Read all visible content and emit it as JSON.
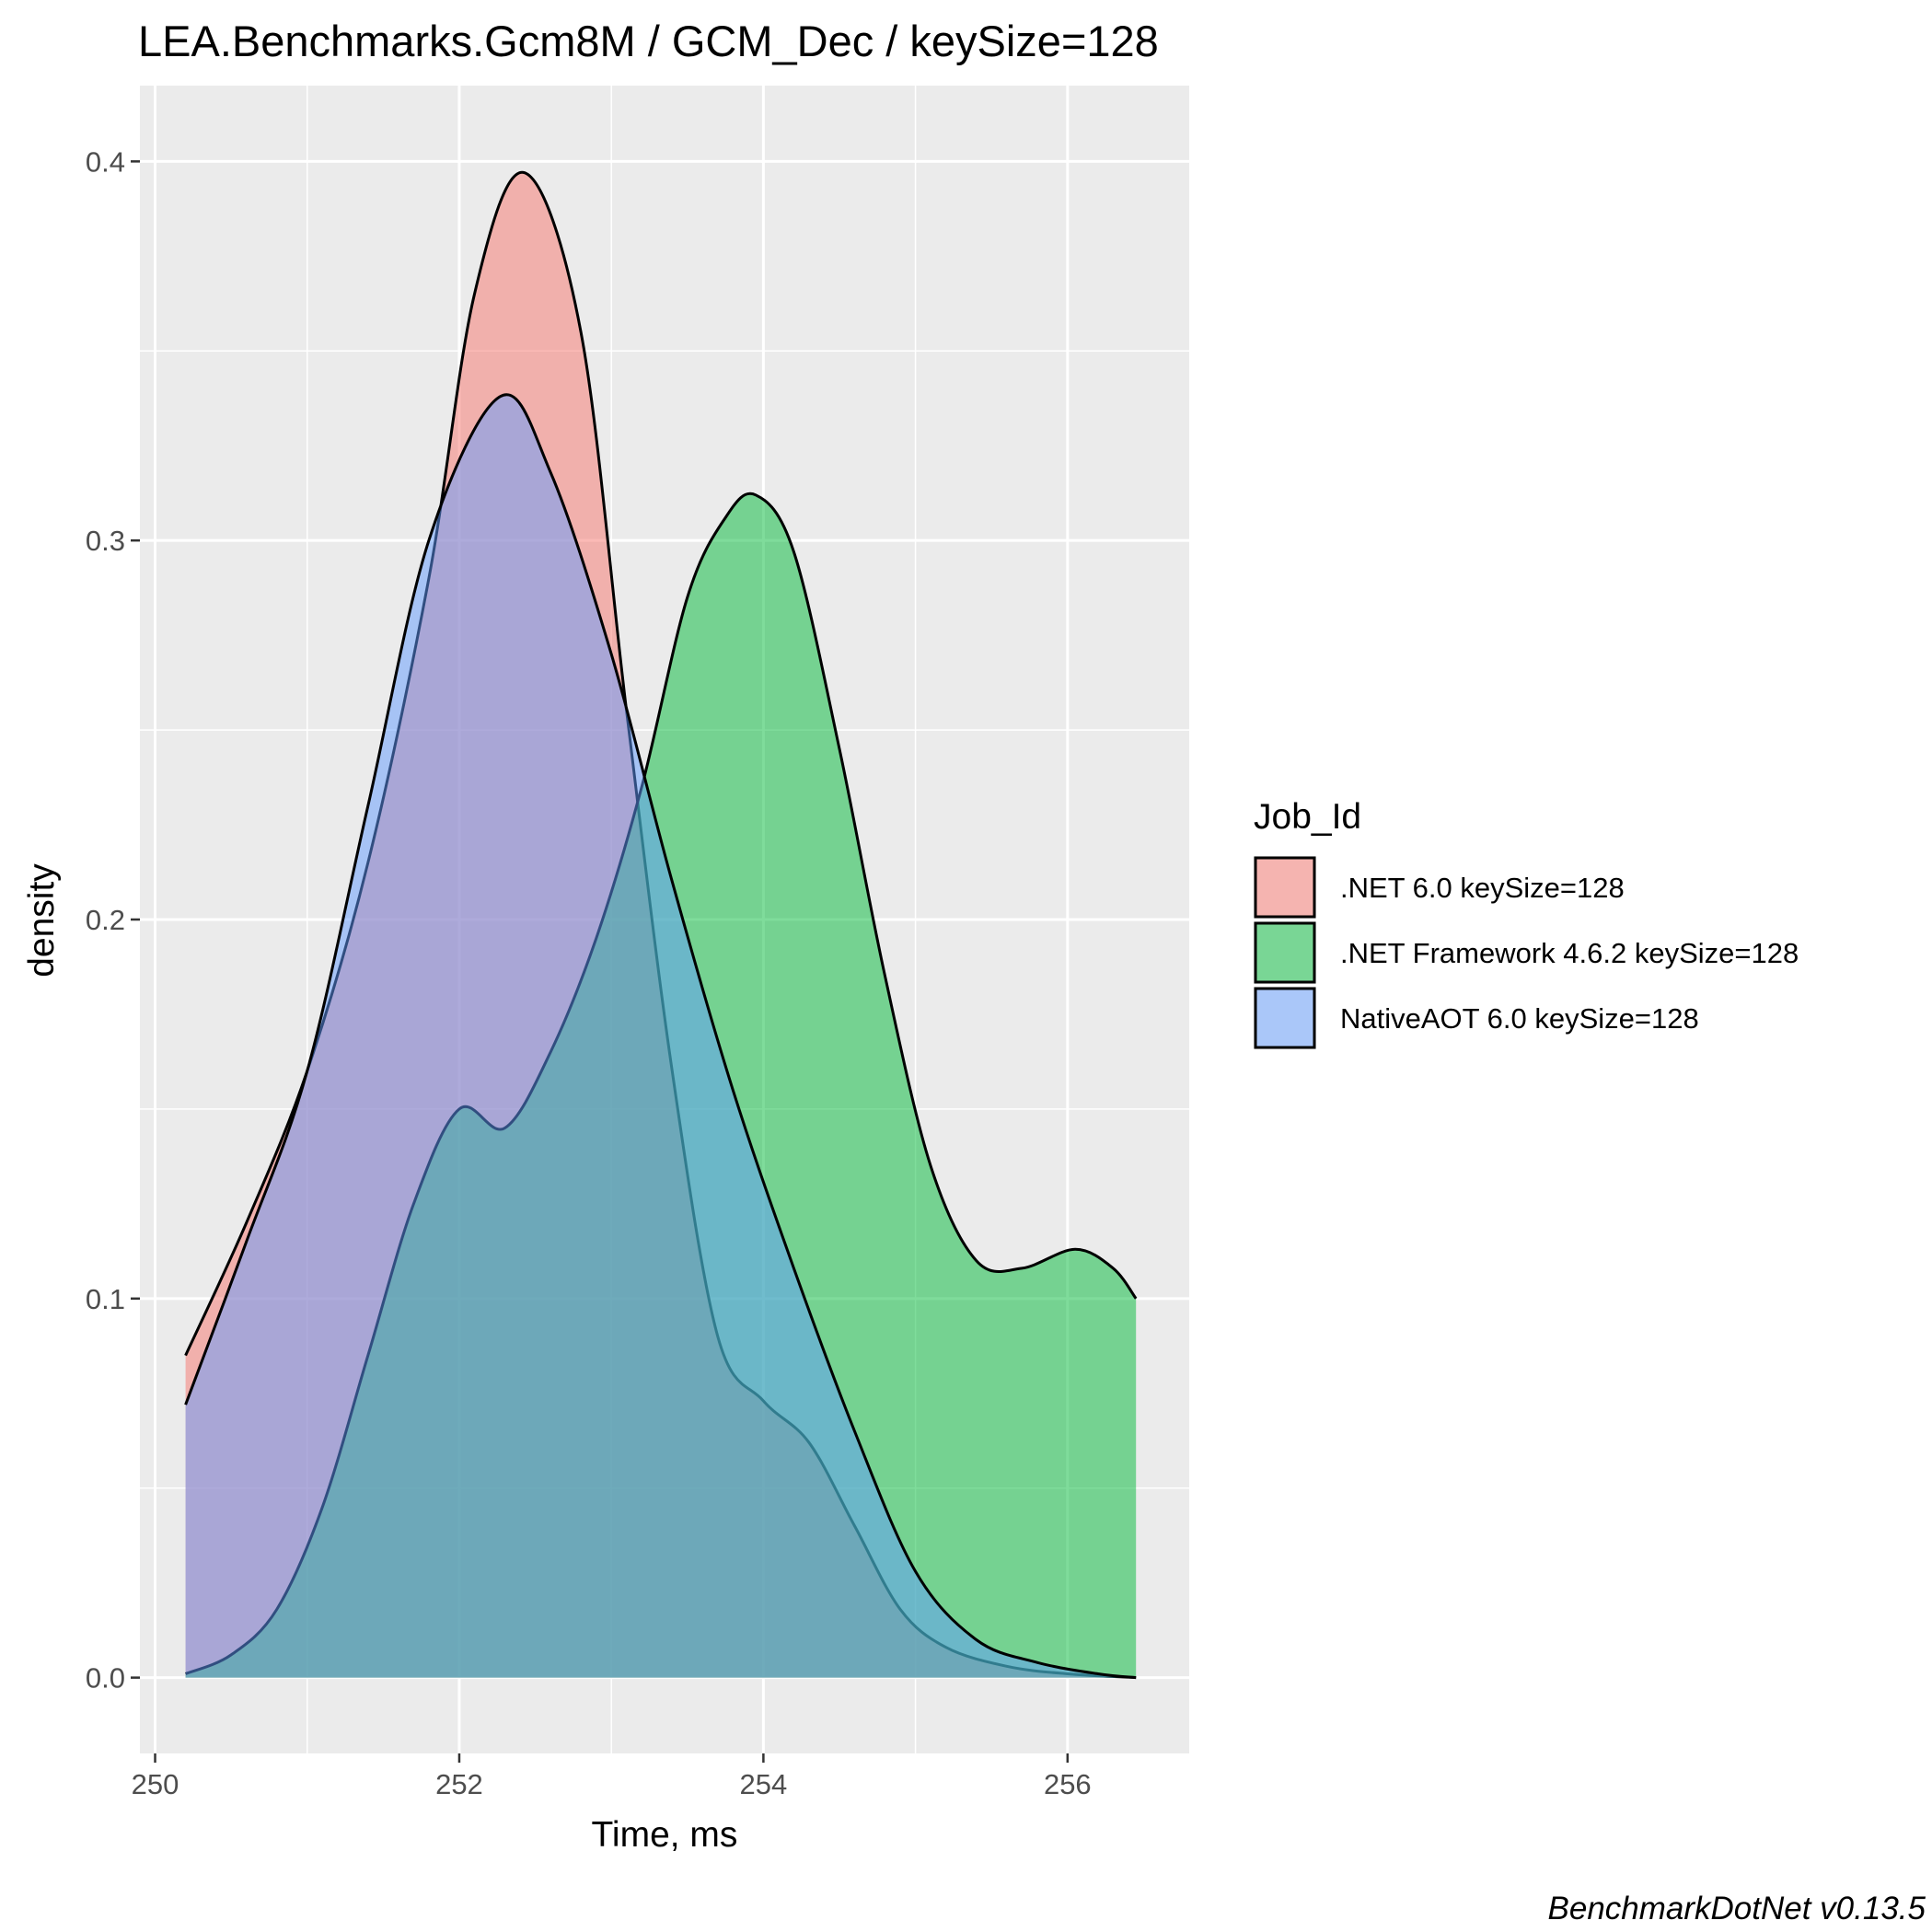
{
  "chart_data": {
    "type": "area",
    "subtype": "density",
    "title": "LEA.Benchmarks.Gcm8M / GCM_Dec / keySize=128",
    "xlabel": "Time, ms",
    "ylabel": "density",
    "xlim": [
      249.9,
      256.8
    ],
    "ylim": [
      -0.02,
      0.42
    ],
    "xticks": [
      250,
      252,
      254,
      256
    ],
    "xtick_labels": [
      "250",
      "252",
      "254",
      "256"
    ],
    "yticks": [
      0.0,
      0.1,
      0.2,
      0.3,
      0.4
    ],
    "ytick_labels": [
      "0.0",
      "0.1",
      "0.2",
      "0.3",
      "0.4"
    ],
    "grid": true,
    "legend": {
      "title": "Job_Id",
      "position": "right"
    },
    "caption": "BenchmarkDotNet v0.13.5",
    "series": [
      {
        "name": ".NET 6.0 keySize=128",
        "color": "#F8766D",
        "x": [
          250.2,
          250.6,
          251.0,
          251.4,
          251.8,
          252.1,
          252.43,
          252.8,
          253.1,
          253.4,
          253.7,
          254.0,
          254.3,
          254.6,
          254.9,
          255.2,
          255.6,
          256.0,
          256.45
        ],
        "y": [
          0.085,
          0.12,
          0.16,
          0.215,
          0.29,
          0.365,
          0.397,
          0.355,
          0.255,
          0.16,
          0.09,
          0.073,
          0.062,
          0.04,
          0.018,
          0.008,
          0.003,
          0.001,
          0.0
        ]
      },
      {
        "name": ".NET Framework 4.6.2 keySize=128",
        "color": "#00BA38",
        "x": [
          250.2,
          250.5,
          250.8,
          251.1,
          251.4,
          251.7,
          252.0,
          252.3,
          252.6,
          252.9,
          253.2,
          253.5,
          253.75,
          253.95,
          254.2,
          254.5,
          254.8,
          255.1,
          255.4,
          255.7,
          256.05,
          256.3,
          256.45
        ],
        "y": [
          0.001,
          0.006,
          0.018,
          0.045,
          0.085,
          0.125,
          0.15,
          0.145,
          0.165,
          0.195,
          0.235,
          0.285,
          0.306,
          0.312,
          0.297,
          0.245,
          0.185,
          0.135,
          0.11,
          0.108,
          0.113,
          0.108,
          0.1
        ]
      },
      {
        "name": "NativeAOT 6.0 keySize=128",
        "color": "#619CFF",
        "x": [
          250.2,
          250.6,
          251.0,
          251.4,
          251.8,
          252.27,
          252.6,
          253.0,
          253.4,
          253.8,
          254.2,
          254.6,
          255.0,
          255.4,
          255.8,
          256.2,
          256.45
        ],
        "y": [
          0.072,
          0.115,
          0.16,
          0.23,
          0.3,
          0.338,
          0.318,
          0.27,
          0.21,
          0.155,
          0.108,
          0.065,
          0.028,
          0.01,
          0.004,
          0.001,
          0.0
        ]
      }
    ]
  }
}
